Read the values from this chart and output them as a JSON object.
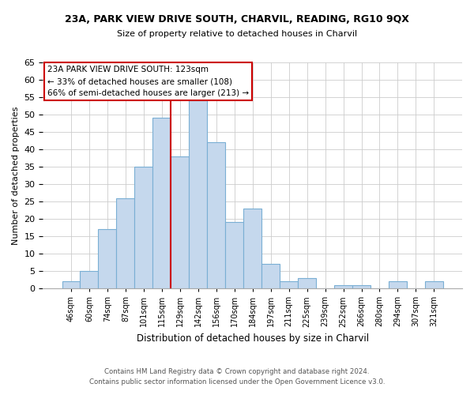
{
  "title": "23A, PARK VIEW DRIVE SOUTH, CHARVIL, READING, RG10 9QX",
  "subtitle": "Size of property relative to detached houses in Charvil",
  "xlabel": "Distribution of detached houses by size in Charvil",
  "ylabel": "Number of detached properties",
  "bar_labels": [
    "46sqm",
    "60sqm",
    "74sqm",
    "87sqm",
    "101sqm",
    "115sqm",
    "129sqm",
    "142sqm",
    "156sqm",
    "170sqm",
    "184sqm",
    "197sqm",
    "211sqm",
    "225sqm",
    "239sqm",
    "252sqm",
    "266sqm",
    "280sqm",
    "294sqm",
    "307sqm",
    "321sqm"
  ],
  "bar_values": [
    2,
    5,
    17,
    26,
    35,
    49,
    38,
    54,
    42,
    19,
    23,
    7,
    2,
    3,
    0,
    1,
    1,
    0,
    2,
    0,
    2
  ],
  "bar_color": "#c5d8ed",
  "bar_edge_color": "#7aafd4",
  "vline_color": "#cc0000",
  "vline_x_idx": 5.5,
  "ylim": [
    0,
    65
  ],
  "yticks": [
    0,
    5,
    10,
    15,
    20,
    25,
    30,
    35,
    40,
    45,
    50,
    55,
    60,
    65
  ],
  "annotation_title": "23A PARK VIEW DRIVE SOUTH: 123sqm",
  "annotation_line1": "← 33% of detached houses are smaller (108)",
  "annotation_line2": "66% of semi-detached houses are larger (213) →",
  "annotation_box_color": "#ffffff",
  "annotation_box_edge": "#cc0000",
  "footer_line1": "Contains HM Land Registry data © Crown copyright and database right 2024.",
  "footer_line2": "Contains public sector information licensed under the Open Government Licence v3.0.",
  "bg_color": "#ffffff",
  "grid_color": "#cccccc"
}
